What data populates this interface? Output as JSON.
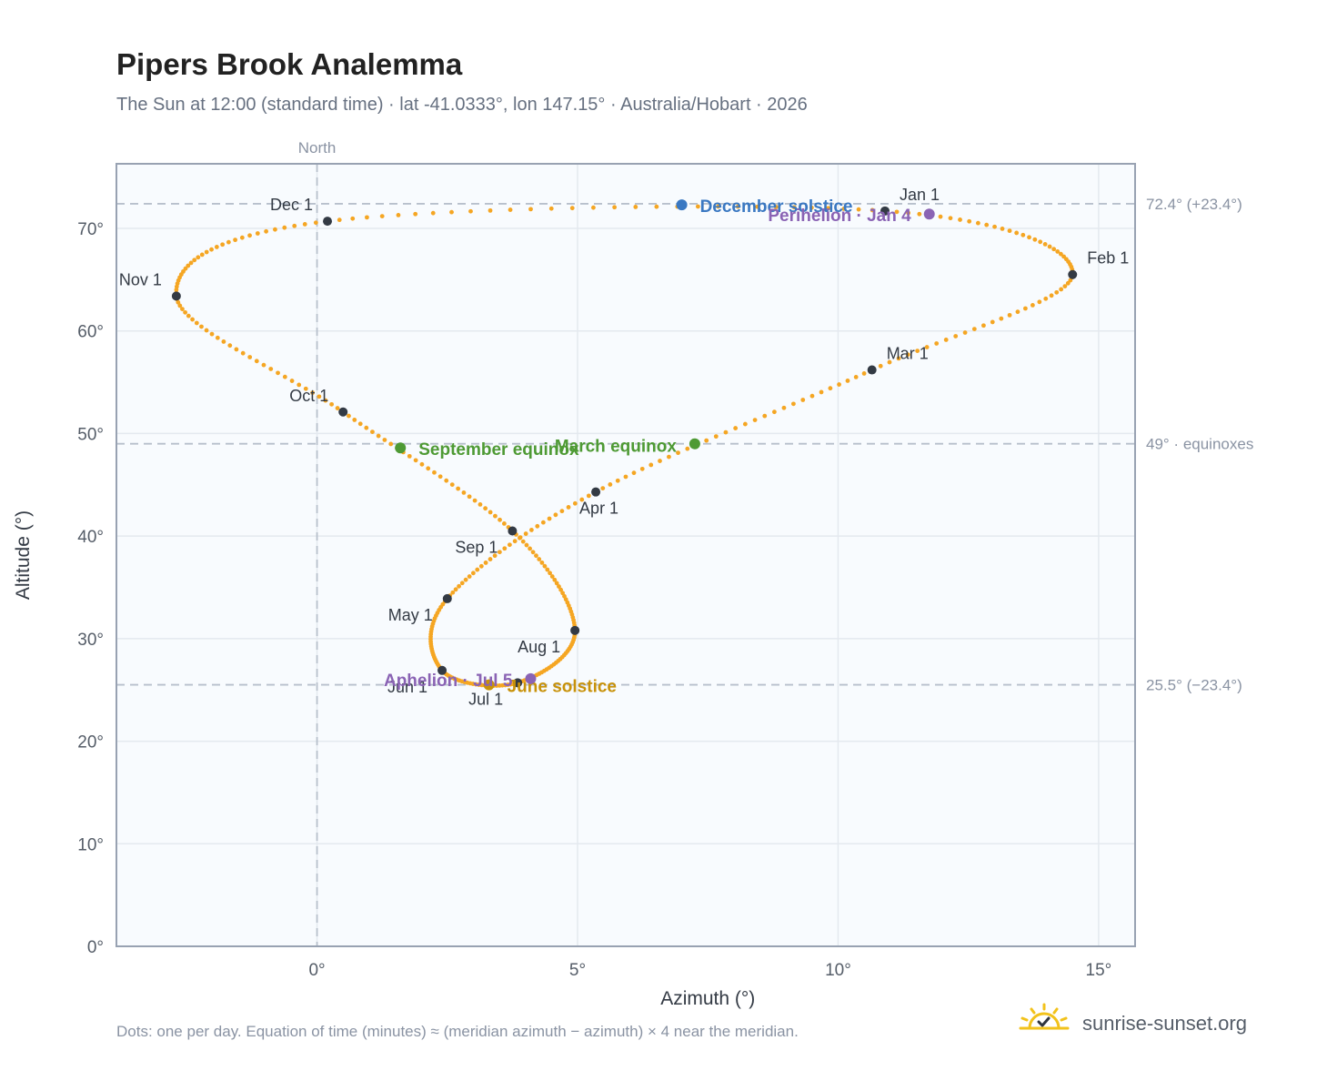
{
  "title": "Pipers Brook Analemma",
  "subtitle": "The Sun at 12:00 (standard time) · lat -41.0333°, lon 147.15° · Australia/Hobart · 2026",
  "footnote": "Dots: one per day. Equation of time (minutes) ≈ (meridian azimuth − azimuth) × 4 near the meridian.",
  "brand": {
    "text": "sunrise-sunset.org",
    "icon": "sun-check-icon"
  },
  "colors": {
    "path": "#f5a623",
    "month_marker": "#333a44",
    "december_solstice": "#3a78c2",
    "june_solstice": "#c8920a",
    "equinox": "#4e9a34",
    "apsis": "#8a63b4",
    "plot_bg": "#f8fbfe",
    "grid": "#e4e9ef",
    "ref_line": "#b7c0cc",
    "frame": "#98a2b2"
  },
  "chart_data": {
    "type": "scatter",
    "title": "Pipers Brook Analemma",
    "xlabel": "Azimuth (°)",
    "ylabel": "Altitude (°)",
    "xlim": [
      -3.85,
      15.7
    ],
    "ylim": [
      0,
      76.3
    ],
    "x_ticks": [
      {
        "value": 0,
        "label": "0°"
      },
      {
        "value": 5,
        "label": "5°"
      },
      {
        "value": 10,
        "label": "10°"
      },
      {
        "value": 15,
        "label": "15°"
      }
    ],
    "y_ticks": [
      {
        "value": 0,
        "label": "0°"
      },
      {
        "value": 10,
        "label": "10°"
      },
      {
        "value": 20,
        "label": "20°"
      },
      {
        "value": 30,
        "label": "30°"
      },
      {
        "value": 40,
        "label": "40°"
      },
      {
        "value": 50,
        "label": "50°"
      },
      {
        "value": 60,
        "label": "60°"
      },
      {
        "value": 70,
        "label": "70°"
      }
    ],
    "grid": true,
    "north_line": {
      "x": 0,
      "label": "North"
    },
    "reference_lines": [
      {
        "y": 72.4,
        "label": "72.4° (+23.4°)"
      },
      {
        "y": 49.0,
        "label": "49° · equinoxes"
      },
      {
        "y": 25.5,
        "label": "25.5° (−23.4°)"
      }
    ],
    "month_markers": [
      {
        "label": "Jan 1",
        "x": 10.9,
        "y": 71.7
      },
      {
        "label": "Feb 1",
        "x": 14.5,
        "y": 65.5
      },
      {
        "label": "Mar 1",
        "x": 10.65,
        "y": 56.2
      },
      {
        "label": "Apr 1",
        "x": 5.35,
        "y": 44.3
      },
      {
        "label": "May 1",
        "x": 2.5,
        "y": 33.9
      },
      {
        "label": "Jun 1",
        "x": 2.4,
        "y": 26.9
      },
      {
        "label": "Jul 1",
        "x": 3.85,
        "y": 25.7
      },
      {
        "label": "Aug 1",
        "x": 4.95,
        "y": 30.8
      },
      {
        "label": "Sep 1",
        "x": 3.75,
        "y": 40.5
      },
      {
        "label": "Oct 1",
        "x": 0.5,
        "y": 52.1
      },
      {
        "label": "Nov 1",
        "x": -2.7,
        "y": 63.4
      },
      {
        "label": "Dec 1",
        "x": 0.2,
        "y": 70.7
      }
    ],
    "events": [
      {
        "label": "December solstice",
        "x": 7.0,
        "y": 72.3,
        "kind": "december_solstice"
      },
      {
        "label": "Perihelion · Jan 4",
        "x": 11.75,
        "y": 71.4,
        "kind": "apsis"
      },
      {
        "label": "March equinox",
        "x": 7.25,
        "y": 49.0,
        "kind": "equinox"
      },
      {
        "label": "September equinox",
        "x": 1.6,
        "y": 48.6,
        "kind": "equinox"
      },
      {
        "label": "June solstice",
        "x": 3.3,
        "y": 25.5,
        "kind": "june_solstice"
      },
      {
        "label": "Aphelion · Jul 5",
        "x": 4.1,
        "y": 26.1,
        "kind": "apsis"
      }
    ]
  }
}
